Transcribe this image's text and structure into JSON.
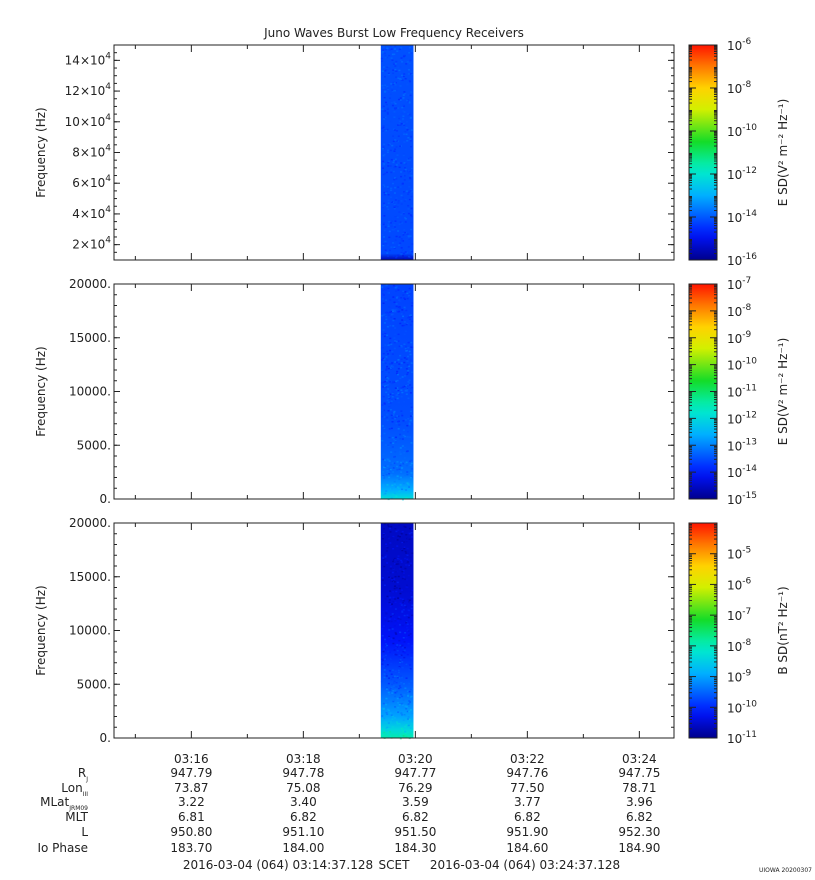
{
  "chart_data": {
    "type": "heatmap",
    "title": "Juno Waves Burst Low Frequency Receivers",
    "x": {
      "ticks": [
        "03:16",
        "03:18",
        "03:20",
        "03:22",
        "03:24"
      ],
      "start_label": "2016-03-04 (064) 03:14:37.128",
      "end_label": "2016-03-04 (064) 03:24:37.128",
      "center_label": "SCET",
      "burst_interval": [
        "03:19:23",
        "03:19:58"
      ]
    },
    "panels": [
      {
        "ylabel": "Frequency (Hz)",
        "ylim": [
          10000,
          150000
        ],
        "yticks": [
          {
            "value": 20000,
            "mant": "2×10",
            "exp": "4"
          },
          {
            "value": 40000,
            "mant": "4×10",
            "exp": "4"
          },
          {
            "value": 60000,
            "mant": "6×10",
            "exp": "4"
          },
          {
            "value": 80000,
            "mant": "8×10",
            "exp": "4"
          },
          {
            "value": 100000,
            "mant": "10×10",
            "exp": "4"
          },
          {
            "value": 120000,
            "mant": "12×10",
            "exp": "4"
          },
          {
            "value": 140000,
            "mant": "14×10",
            "exp": "4"
          }
        ],
        "colorbar": {
          "label": "E SD(V² m⁻² Hz⁻¹)",
          "log": true,
          "range_exp": [
            -16,
            -6
          ],
          "ticks": [
            -16,
            -14,
            -12,
            -10,
            -8,
            -6
          ]
        },
        "burst_profile": [
          {
            "frac": 0.0,
            "exp": -15.6
          },
          {
            "frac": 0.03,
            "exp": -14.2
          },
          {
            "frac": 1.0,
            "exp": -14.1
          }
        ]
      },
      {
        "ylabel": "Frequency (Hz)",
        "ylim": [
          0,
          20000
        ],
        "yticks": [
          {
            "value": 0,
            "text": "0."
          },
          {
            "value": 5000,
            "text": "5000."
          },
          {
            "value": 10000,
            "text": "10000."
          },
          {
            "value": 15000,
            "text": "15000."
          },
          {
            "value": 20000,
            "text": "20000."
          }
        ],
        "colorbar": {
          "label": "E SD(V² m⁻² Hz⁻¹)",
          "log": true,
          "range_exp": [
            -15,
            -7
          ],
          "ticks": [
            -15,
            -14,
            -13,
            -12,
            -11,
            -10,
            -9,
            -8,
            -7
          ]
        },
        "burst_profile": [
          {
            "frac": 0.0,
            "exp": -11.9
          },
          {
            "frac": 0.04,
            "exp": -12.6
          },
          {
            "frac": 0.12,
            "exp": -13.2
          },
          {
            "frac": 0.35,
            "exp": -13.5
          },
          {
            "frac": 1.0,
            "exp": -13.6
          }
        ]
      },
      {
        "ylabel": "Frequency (Hz)",
        "ylim": [
          0,
          20000
        ],
        "yticks": [
          {
            "value": 0,
            "text": "0."
          },
          {
            "value": 5000,
            "text": "5000."
          },
          {
            "value": 10000,
            "text": "10000."
          },
          {
            "value": 15000,
            "text": "15000."
          },
          {
            "value": 20000,
            "text": "20000."
          }
        ],
        "colorbar": {
          "label": "B SD(nT² Hz⁻¹)",
          "log": true,
          "range_exp": [
            -11,
            -4
          ],
          "ticks": [
            -11,
            -10,
            -9,
            -8,
            -7,
            -6,
            -5
          ]
        },
        "burst_profile": [
          {
            "frac": 0.0,
            "exp": -7.9
          },
          {
            "frac": 0.04,
            "exp": -8.4
          },
          {
            "frac": 0.1,
            "exp": -9.0
          },
          {
            "frac": 0.25,
            "exp": -9.6
          },
          {
            "frac": 0.45,
            "exp": -10.2
          },
          {
            "frac": 0.7,
            "exp": -10.5
          },
          {
            "frac": 1.0,
            "exp": -10.6
          }
        ]
      }
    ],
    "ephemeris": [
      {
        "label": "R",
        "sub": "J",
        "values": [
          "947.79",
          "947.78",
          "947.77",
          "947.76",
          "947.75"
        ]
      },
      {
        "label": "Lon",
        "sub": "III",
        "values": [
          "73.87",
          "75.08",
          "76.29",
          "77.50",
          "78.71"
        ]
      },
      {
        "label": "MLat",
        "sub": "JRM09",
        "values": [
          "3.22",
          "3.40",
          "3.59",
          "3.77",
          "3.96"
        ]
      },
      {
        "label": "MLT",
        "sub": "",
        "values": [
          "6.81",
          "6.82",
          "6.82",
          "6.82",
          "6.82"
        ]
      },
      {
        "label": "L",
        "sub": "",
        "values": [
          "950.80",
          "951.10",
          "951.50",
          "951.90",
          "952.30"
        ]
      },
      {
        "label": "Io Phase",
        "sub": "",
        "values": [
          "183.70",
          "184.00",
          "184.30",
          "184.60",
          "184.90"
        ]
      }
    ],
    "footer_tag": "UIOWA 20200307"
  }
}
